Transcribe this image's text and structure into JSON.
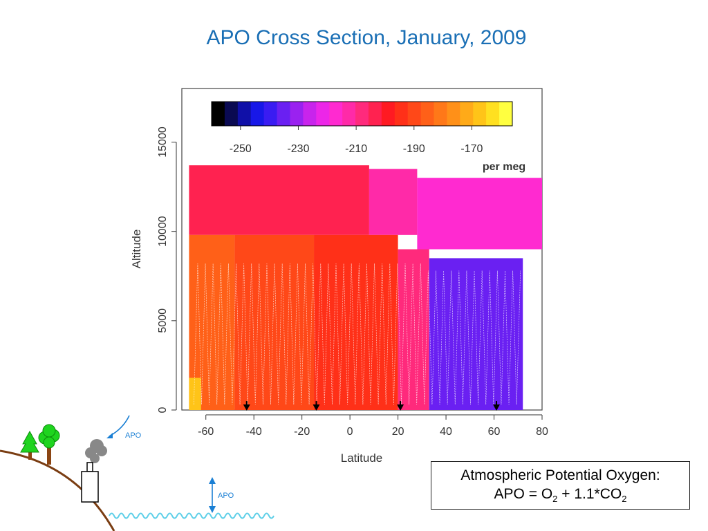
{
  "title": "APO Cross Section, January, 2009",
  "chart_data": {
    "type": "heatmap",
    "xlabel": "Latitude",
    "ylabel": "Altitude",
    "xlim": [
      -70,
      80
    ],
    "ylim": [
      0,
      18000
    ],
    "xticks": [
      -60,
      -40,
      -20,
      0,
      20,
      40,
      60,
      80
    ],
    "yticks": [
      0,
      5000,
      10000,
      15000
    ],
    "colorbar": {
      "ticks": [
        -250,
        -230,
        -210,
        -190,
        -170
      ],
      "range": [
        -260,
        -156
      ],
      "unit_label": "per meg",
      "colors": [
        "#000000",
        "#0a0a52",
        "#1010a8",
        "#1818e8",
        "#3a1cf2",
        "#6a20f2",
        "#9a22f0",
        "#c824ec",
        "#ec26e8",
        "#ff2ad0",
        "#ff2aa8",
        "#ff2a7c",
        "#ff2250",
        "#ff1a22",
        "#ff3018",
        "#ff4818",
        "#ff6018",
        "#ff7818",
        "#ff9018",
        "#ffaa18",
        "#ffc418",
        "#ffe020",
        "#ffff40"
      ]
    },
    "flight_markers_latitude": [
      -43,
      -14,
      21,
      61
    ],
    "regions": [
      {
        "lat": [
          -67,
          8
        ],
        "alt": [
          9800,
          13700
        ],
        "apo": -205
      },
      {
        "lat": [
          8,
          28
        ],
        "alt": [
          9800,
          13500
        ],
        "apo": -214
      },
      {
        "lat": [
          28,
          80
        ],
        "alt": [
          9000,
          13000
        ],
        "apo": -218
      },
      {
        "lat": [
          -67,
          -48
        ],
        "alt": [
          0,
          9800
        ],
        "apo": -184
      },
      {
        "lat": [
          -48,
          -15
        ],
        "alt": [
          0,
          9800
        ],
        "apo": -190
      },
      {
        "lat": [
          -15,
          20
        ],
        "alt": [
          0,
          9800
        ],
        "apo": -193
      },
      {
        "lat": [
          20,
          33
        ],
        "alt": [
          0,
          9000
        ],
        "apo": -210
      },
      {
        "lat": [
          33,
          72
        ],
        "alt": [
          0,
          8500
        ],
        "apo": -237
      },
      {
        "lat": [
          -67,
          -62
        ],
        "alt": [
          0,
          1800
        ],
        "apo": -168
      }
    ]
  },
  "legend_box": {
    "line1": "Atmospheric Potential Oxygen:",
    "line2_prefix": "APO = O",
    "line2_sub1": "2",
    "line2_mid": " + 1.1*CO",
    "line2_sub2": "2"
  },
  "illustration": {
    "flux_label_top": "APO",
    "flux_label_bottom": "APO"
  }
}
